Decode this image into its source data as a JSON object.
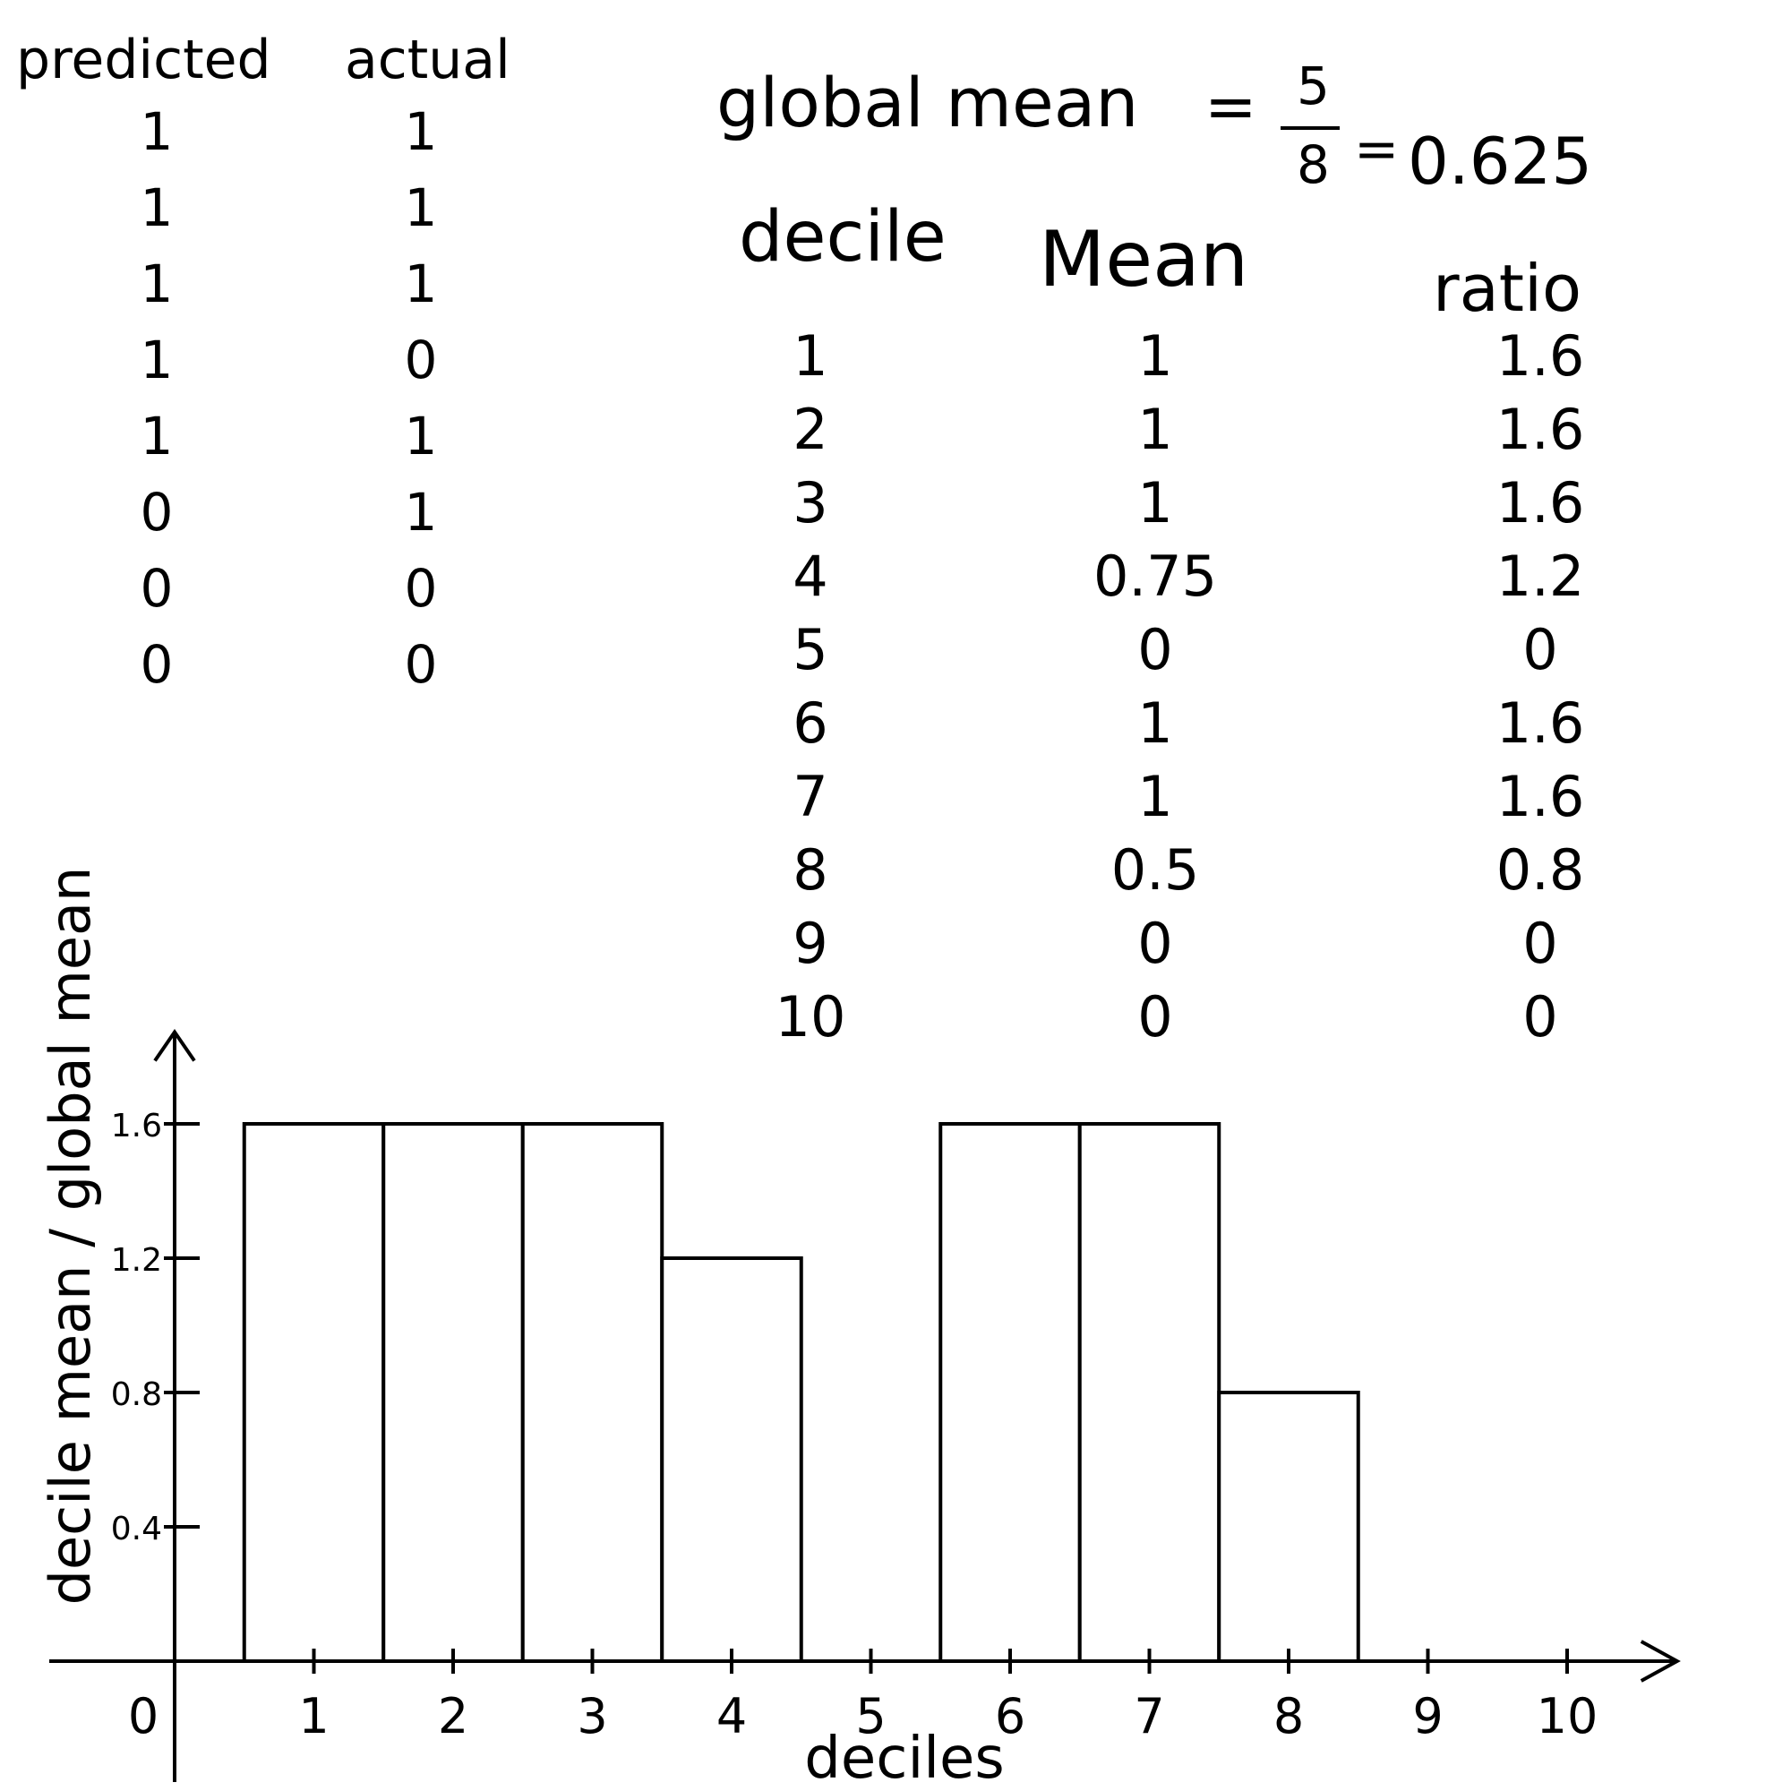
{
  "table_left": {
    "headers": [
      "predicted",
      "actual"
    ],
    "predicted": [
      "1",
      "1",
      "1",
      "1",
      "1",
      "0",
      "0",
      "0"
    ],
    "actual": [
      "1",
      "1",
      "1",
      "0",
      "1",
      "1",
      "0",
      "0"
    ]
  },
  "global_mean": {
    "label": "global mean",
    "fraction_num": "5",
    "fraction_den": "8",
    "value": "0.625"
  },
  "table_right": {
    "headers": [
      "decile",
      "Mean",
      "ratio"
    ],
    "decile": [
      "1",
      "2",
      "3",
      "4",
      "5",
      "6",
      "7",
      "8",
      "9",
      "10"
    ],
    "mean": [
      "1",
      "1",
      "1",
      "0.75",
      "0",
      "1",
      "1",
      "0.5",
      "0",
      "0"
    ],
    "ratio": [
      "1.6",
      "1.6",
      "1.6",
      "1.2",
      "0",
      "1.6",
      "1.6",
      "0.8",
      "0",
      "0"
    ]
  },
  "chart_data": {
    "type": "bar",
    "categories": [
      "1",
      "2",
      "3",
      "4",
      "5",
      "6",
      "7",
      "8",
      "9",
      "10"
    ],
    "values": [
      1.6,
      1.6,
      1.6,
      1.2,
      0,
      1.6,
      1.6,
      0.8,
      0,
      0
    ],
    "x_ticks": [
      "0",
      "1",
      "2",
      "3",
      "4",
      "5",
      "6",
      "7",
      "8",
      "9",
      "10"
    ],
    "y_ticks": [
      "0.4",
      "0.8",
      "1.2",
      "1.6"
    ],
    "xlabel": "deciles",
    "ylabel": "decile mean / global mean",
    "xlim": [
      0,
      10.5
    ],
    "ylim": [
      0,
      1.7
    ],
    "grid": false,
    "bar_fill": "#ffffff",
    "stroke_color": "#000000"
  }
}
